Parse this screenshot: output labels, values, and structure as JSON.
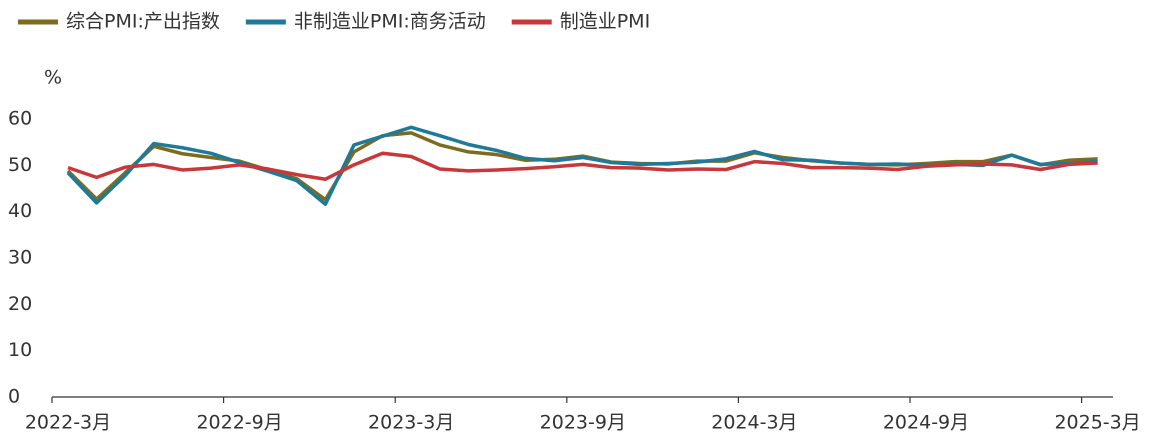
{
  "chart_data": {
    "type": "line",
    "y_unit": "%",
    "categories": [
      "2022-3月",
      null,
      null,
      null,
      null,
      null,
      "2022-9月",
      null,
      null,
      null,
      null,
      null,
      "2023-3月",
      null,
      null,
      null,
      null,
      null,
      "2023-9月",
      null,
      null,
      null,
      null,
      null,
      "2024-3月",
      null,
      null,
      null,
      null,
      null,
      "2024-9月",
      null,
      null,
      null,
      null,
      null,
      "2025-3月"
    ],
    "series": [
      {
        "name": "综合PMI:产出指数",
        "color": "#7d6c1f",
        "values": [
          48.8,
          42.7,
          48.4,
          54.1,
          52.5,
          51.7,
          50.9,
          49.0,
          47.1,
          42.6,
          52.9,
          56.4,
          57.0,
          54.4,
          52.9,
          52.3,
          51.1,
          51.3,
          52.0,
          50.7,
          50.4,
          50.3,
          50.9,
          50.9,
          52.7,
          51.7,
          51.0,
          50.5,
          50.2,
          50.1,
          50.4,
          50.8,
          50.8,
          52.2,
          50.1,
          51.1,
          51.4
        ]
      },
      {
        "name": "非制造业PMI:商务活动",
        "color": "#1f7a99",
        "values": [
          48.4,
          41.9,
          47.8,
          54.7,
          53.8,
          52.6,
          50.6,
          48.7,
          46.7,
          41.6,
          54.4,
          56.3,
          58.2,
          56.4,
          54.5,
          53.2,
          51.5,
          51.0,
          51.7,
          50.6,
          50.2,
          50.4,
          50.7,
          51.4,
          53.0,
          51.2,
          51.1,
          50.5,
          50.2,
          50.3,
          50.0,
          50.2,
          50.0,
          52.2,
          50.2,
          50.4,
          50.8
        ]
      },
      {
        "name": "制造业PMI",
        "color": "#c8373a",
        "values": [
          49.5,
          47.4,
          49.6,
          50.2,
          49.0,
          49.4,
          50.1,
          49.2,
          48.0,
          47.0,
          50.1,
          52.6,
          51.9,
          49.2,
          48.8,
          49.0,
          49.3,
          49.7,
          50.2,
          49.5,
          49.4,
          49.0,
          49.2,
          49.1,
          50.8,
          50.4,
          49.5,
          49.5,
          49.4,
          49.1,
          49.8,
          50.1,
          50.3,
          50.1,
          49.1,
          50.2,
          50.5
        ]
      }
    ],
    "ylim": [
      0,
      60
    ],
    "yticks": [
      0,
      10,
      20,
      30,
      40,
      50,
      60
    ],
    "grid": false
  }
}
